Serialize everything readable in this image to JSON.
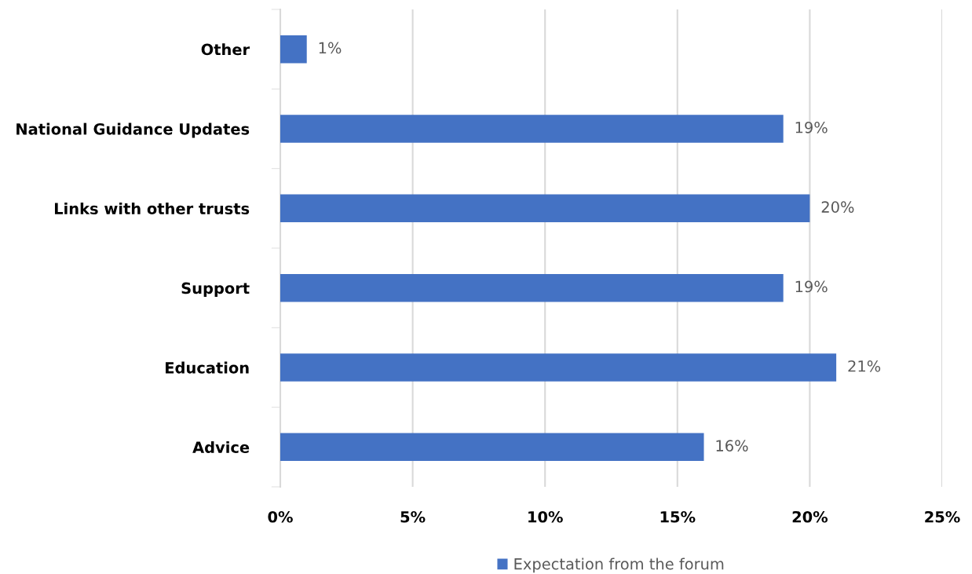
{
  "chart_data": {
    "type": "bar",
    "orientation": "horizontal",
    "categories": [
      "Other",
      "National Guidance Updates",
      "Links with other trusts",
      "Support",
      "Education",
      "Advice"
    ],
    "series": [
      {
        "name": "Expectation from the forum",
        "color": "#4472c4",
        "values": [
          1,
          19,
          20,
          19,
          21,
          16
        ],
        "value_labels": [
          "1%",
          "19%",
          "20%",
          "19%",
          "21%",
          "16%"
        ]
      }
    ],
    "xlim": [
      0,
      25
    ],
    "xticks": [
      {
        "value": 0,
        "label": "0%"
      },
      {
        "value": 5,
        "label": "5%"
      },
      {
        "value": 10,
        "label": "10%"
      },
      {
        "value": 15,
        "label": "15%"
      },
      {
        "value": 20,
        "label": "20%"
      },
      {
        "value": 25,
        "label": "25%"
      }
    ],
    "grid": "x",
    "legend": "bottom"
  }
}
